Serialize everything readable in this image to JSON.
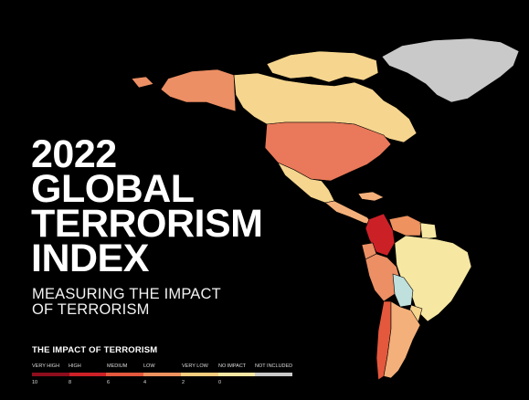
{
  "title_lines": [
    "2022",
    "GLOBAL",
    "TERRORISM",
    "INDEX"
  ],
  "subtitle_lines": [
    "MEASURING THE IMPACT",
    "OF TERRORISM"
  ],
  "legend": {
    "title": "THE IMPACT OF TERRORISM",
    "categories": [
      {
        "label": "VERY HIGH",
        "color": "#8e0d1d"
      },
      {
        "label": "HIGH",
        "color": "#cc2027"
      },
      {
        "label": "MEDIUM",
        "color": "#e4583d"
      },
      {
        "label": "LOW",
        "color": "#ee9260"
      },
      {
        "label": "VERY LOW",
        "color": "#f7cd7e"
      },
      {
        "label": "NO IMPACT",
        "color": "#f6e7a2"
      },
      {
        "label": "NOT INCLUDED",
        "color": "#c9c9c9"
      }
    ],
    "scale": [
      "10",
      "8",
      "6",
      "4",
      "2",
      "0"
    ]
  },
  "map_colors": {
    "background": "#000000",
    "alaska": "#ec8f64",
    "canada": "#f6d58e",
    "usa": "#e9795a",
    "mexico": "#f6d58e",
    "greenland": "#c9c9c9",
    "central_america": "#f4b07a",
    "colombia": "#cc2027",
    "venezuela": "#ee9260",
    "peru": "#ec8f64",
    "brazil": "#f6e7a2",
    "bolivia": "#bfe0dd",
    "chile": "#e4583d",
    "argentina": "#f4b07a",
    "paraguay": "#f6d58e",
    "ecuador": "#ec8f64",
    "guianas": "#f6e7a2"
  }
}
